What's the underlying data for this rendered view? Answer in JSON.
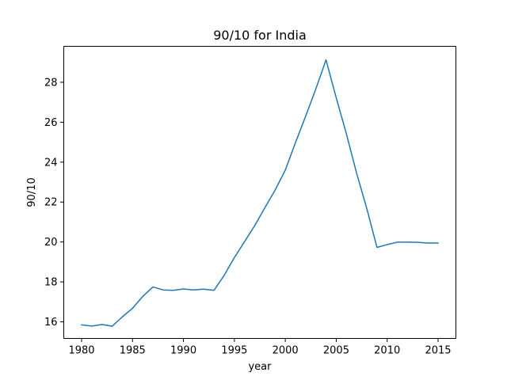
{
  "chart_data": {
    "type": "line",
    "title": "90/10 for India",
    "xlabel": "year",
    "ylabel": "90/10",
    "xlim": [
      1978.25,
      2016.75
    ],
    "ylim": [
      15.17,
      29.8
    ],
    "xticks": [
      1980,
      1985,
      1990,
      1995,
      2000,
      2005,
      2010,
      2015
    ],
    "yticks": [
      16,
      18,
      20,
      22,
      24,
      26,
      28
    ],
    "grid": false,
    "legend": "none",
    "colors": {
      "series": "#1f77b4"
    },
    "series": [
      {
        "x": [
          1980,
          1981,
          1982,
          1983,
          1984,
          1985,
          1986,
          1987,
          1988,
          1989,
          1990,
          1991,
          1992,
          1993,
          1994,
          1995,
          1996,
          1997,
          1998,
          1999,
          2000,
          2001,
          2002,
          2003,
          2004,
          2005,
          2006,
          2007,
          2008,
          2009,
          2010,
          2011,
          2012,
          2013,
          2014,
          2015
        ],
        "values": [
          15.85,
          15.79,
          15.87,
          15.78,
          16.25,
          16.68,
          17.27,
          17.75,
          17.6,
          17.58,
          17.65,
          17.6,
          17.64,
          17.58,
          18.33,
          19.22,
          20.02,
          20.82,
          21.72,
          22.6,
          23.6,
          24.98,
          26.3,
          27.67,
          29.12,
          27.22,
          25.41,
          23.45,
          21.68,
          19.73,
          19.87,
          19.99,
          19.99,
          19.98,
          19.95,
          19.95
        ]
      }
    ]
  }
}
